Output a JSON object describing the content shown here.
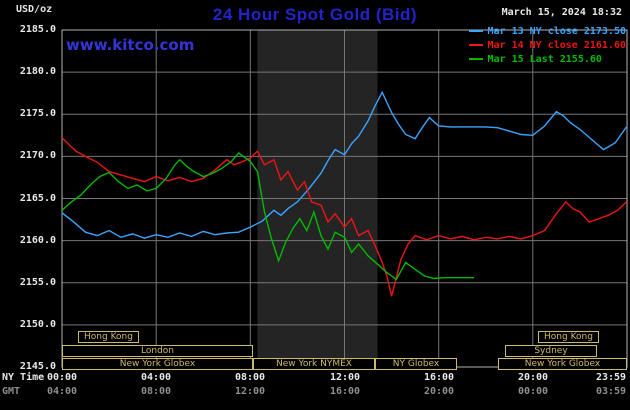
{
  "header": {
    "unit_label": "USD/oz",
    "title": "24 Hour Spot Gold (Bid)",
    "datetime": "March 15, 2024 18:32",
    "watermark": "www.kitco.com"
  },
  "legend": {
    "items": [
      {
        "label": "Mar 13 NY close 2173.50"
      },
      {
        "label": "Mar 14 NY close 2161.60"
      },
      {
        "label": "Mar 15 Last 2155.60"
      }
    ]
  },
  "axes": {
    "y_ticks": [
      "2185.0",
      "2180.0",
      "2175.0",
      "2170.0",
      "2165.0",
      "2160.0",
      "2155.0",
      "2150.0",
      "2145.0"
    ],
    "y_color": "#e8e8e8",
    "x_tick_hours": [
      0,
      4,
      8,
      12,
      16,
      20,
      23.983
    ],
    "x_axis_rows": [
      {
        "name": "NY Time",
        "color": "#e8e8e8",
        "labels": [
          "00:00",
          "04:00",
          "08:00",
          "12:00",
          "16:00",
          "20:00",
          "23:59"
        ]
      },
      {
        "name": "GMT",
        "color": "#8f8f8f",
        "labels": [
          "04:00",
          "08:00",
          "12:00",
          "16:00",
          "20:00",
          "00:00",
          "03:59"
        ]
      }
    ]
  },
  "sessions": [
    {
      "label": "Hong Kong",
      "row": 0,
      "start": 0.7,
      "end": 3.3
    },
    {
      "label": "Hong Kong",
      "row": 0,
      "start": 20.2,
      "end": 22.8
    },
    {
      "label": "London",
      "row": 1,
      "start": 0.0,
      "end": 8.1
    },
    {
      "label": "Sydney",
      "row": 1,
      "start": 18.8,
      "end": 22.7
    },
    {
      "label": "New York Globex",
      "row": 2,
      "start": 0.0,
      "end": 8.1
    },
    {
      "label": "New York NYMEX",
      "row": 2,
      "start": 8.1,
      "end": 13.3
    },
    {
      "label": "NY Globex",
      "row": 2,
      "start": 13.3,
      "end": 16.8
    },
    {
      "label": "New York Globex",
      "row": 2,
      "start": 18.5,
      "end": 24.0
    }
  ],
  "colors": {
    "background": "#000000",
    "plot_border": "#b4b4b4",
    "grid": "#767676",
    "band": "#242424",
    "session_box": "#cdb96d",
    "title": "#2323cc",
    "watermark": "#3535d6"
  },
  "chart_data": {
    "type": "line",
    "title": "24 Hour Spot Gold (Bid)",
    "ylabel": "USD/oz",
    "ylim": [
      2145,
      2185
    ],
    "xlim_hours": [
      0,
      24
    ],
    "y_gridlines": [
      2150,
      2155,
      2160,
      2165,
      2170,
      2175,
      2180
    ],
    "x_gridlines_hours": [
      4,
      8,
      12,
      16,
      20
    ],
    "ny_session_band_hours": [
      8.3,
      13.4
    ],
    "legend_position": "top-right",
    "series": [
      {
        "id": "mar13",
        "name": "Mar 13 NY close 2173.50",
        "close": 2173.5,
        "color": "#3aa4ff",
        "points": [
          [
            0,
            2163.3
          ],
          [
            0.5,
            2162.2
          ],
          [
            1,
            2161.0
          ],
          [
            1.5,
            2160.6
          ],
          [
            2,
            2161.2
          ],
          [
            2.5,
            2160.4
          ],
          [
            3,
            2160.8
          ],
          [
            3.5,
            2160.3
          ],
          [
            4,
            2160.7
          ],
          [
            4.5,
            2160.4
          ],
          [
            5,
            2160.9
          ],
          [
            5.5,
            2160.5
          ],
          [
            6,
            2161.1
          ],
          [
            6.5,
            2160.7
          ],
          [
            7,
            2160.9
          ],
          [
            7.5,
            2161.0
          ],
          [
            8,
            2161.6
          ],
          [
            8.5,
            2162.3
          ],
          [
            9,
            2163.6
          ],
          [
            9.3,
            2163.0
          ],
          [
            9.6,
            2163.8
          ],
          [
            10,
            2164.6
          ],
          [
            10.5,
            2166.2
          ],
          [
            11,
            2168.0
          ],
          [
            11.3,
            2169.5
          ],
          [
            11.6,
            2170.8
          ],
          [
            12,
            2170.2
          ],
          [
            12.3,
            2171.5
          ],
          [
            12.6,
            2172.4
          ],
          [
            13,
            2174.2
          ],
          [
            13.3,
            2176.0
          ],
          [
            13.6,
            2177.6
          ],
          [
            13.8,
            2176.4
          ],
          [
            14,
            2175.2
          ],
          [
            14.3,
            2173.8
          ],
          [
            14.6,
            2172.6
          ],
          [
            15,
            2172.1
          ],
          [
            15.3,
            2173.4
          ],
          [
            15.6,
            2174.6
          ],
          [
            16,
            2173.6
          ],
          [
            16.5,
            2173.5
          ],
          [
            17,
            2173.5
          ],
          [
            17.5,
            2173.5
          ],
          [
            18,
            2173.5
          ],
          [
            18.5,
            2173.4
          ],
          [
            19,
            2173.0
          ],
          [
            19.5,
            2172.6
          ],
          [
            20,
            2172.5
          ],
          [
            20.5,
            2173.6
          ],
          [
            21,
            2175.3
          ],
          [
            21.3,
            2174.8
          ],
          [
            21.6,
            2174.0
          ],
          [
            22,
            2173.2
          ],
          [
            22.5,
            2172.0
          ],
          [
            23,
            2170.8
          ],
          [
            23.5,
            2171.6
          ],
          [
            23.98,
            2173.5
          ]
        ]
      },
      {
        "id": "mar14",
        "name": "Mar 14 NY close 2161.60",
        "close": 2161.6,
        "color": "#ee1515",
        "points": [
          [
            0,
            2172.2
          ],
          [
            0.3,
            2171.4
          ],
          [
            0.6,
            2170.6
          ],
          [
            1,
            2170.0
          ],
          [
            1.5,
            2169.3
          ],
          [
            2,
            2168.2
          ],
          [
            2.5,
            2167.8
          ],
          [
            3,
            2167.4
          ],
          [
            3.5,
            2167.0
          ],
          [
            4,
            2167.6
          ],
          [
            4.5,
            2167.1
          ],
          [
            5,
            2167.5
          ],
          [
            5.5,
            2167.0
          ],
          [
            6,
            2167.4
          ],
          [
            6.5,
            2168.4
          ],
          [
            7,
            2169.6
          ],
          [
            7.3,
            2169.0
          ],
          [
            7.6,
            2169.3
          ],
          [
            8,
            2169.8
          ],
          [
            8.3,
            2170.6
          ],
          [
            8.6,
            2169.0
          ],
          [
            9,
            2169.6
          ],
          [
            9.3,
            2167.2
          ],
          [
            9.6,
            2168.2
          ],
          [
            10,
            2166.0
          ],
          [
            10.3,
            2167.0
          ],
          [
            10.6,
            2164.6
          ],
          [
            11,
            2164.2
          ],
          [
            11.3,
            2162.2
          ],
          [
            11.6,
            2163.2
          ],
          [
            12,
            2161.6
          ],
          [
            12.3,
            2162.6
          ],
          [
            12.6,
            2160.6
          ],
          [
            13,
            2161.2
          ],
          [
            13.3,
            2159.4
          ],
          [
            13.6,
            2157.4
          ],
          [
            13.8,
            2155.8
          ],
          [
            14,
            2153.4
          ],
          [
            14.2,
            2155.6
          ],
          [
            14.4,
            2157.8
          ],
          [
            14.7,
            2159.6
          ],
          [
            15,
            2160.6
          ],
          [
            15.5,
            2160.1
          ],
          [
            16,
            2160.6
          ],
          [
            16.5,
            2160.2
          ],
          [
            17,
            2160.5
          ],
          [
            17.5,
            2160.1
          ],
          [
            18,
            2160.4
          ],
          [
            18.5,
            2160.2
          ],
          [
            19,
            2160.5
          ],
          [
            19.5,
            2160.2
          ],
          [
            20,
            2160.6
          ],
          [
            20.5,
            2161.2
          ],
          [
            21,
            2163.2
          ],
          [
            21.4,
            2164.6
          ],
          [
            21.7,
            2163.8
          ],
          [
            22,
            2163.4
          ],
          [
            22.4,
            2162.2
          ],
          [
            22.8,
            2162.6
          ],
          [
            23.2,
            2163.0
          ],
          [
            23.6,
            2163.6
          ],
          [
            23.98,
            2164.6
          ]
        ]
      },
      {
        "id": "mar15",
        "name": "Mar 15 Last 2155.60",
        "last": 2155.6,
        "color": "#00bb00",
        "points": [
          [
            0,
            2163.6
          ],
          [
            0.4,
            2164.6
          ],
          [
            0.8,
            2165.4
          ],
          [
            1.2,
            2166.6
          ],
          [
            1.6,
            2167.6
          ],
          [
            2,
            2168.1
          ],
          [
            2.4,
            2167.0
          ],
          [
            2.8,
            2166.2
          ],
          [
            3.2,
            2166.6
          ],
          [
            3.6,
            2165.9
          ],
          [
            4,
            2166.2
          ],
          [
            4.4,
            2167.3
          ],
          [
            4.8,
            2169.0
          ],
          [
            5,
            2169.6
          ],
          [
            5.3,
            2168.8
          ],
          [
            5.6,
            2168.2
          ],
          [
            6,
            2167.6
          ],
          [
            6.4,
            2168.0
          ],
          [
            6.8,
            2168.6
          ],
          [
            7.2,
            2169.4
          ],
          [
            7.5,
            2170.4
          ],
          [
            7.8,
            2169.8
          ],
          [
            8,
            2169.4
          ],
          [
            8.3,
            2168.2
          ],
          [
            8.6,
            2163.4
          ],
          [
            8.9,
            2160.2
          ],
          [
            9.2,
            2157.6
          ],
          [
            9.5,
            2159.8
          ],
          [
            9.8,
            2161.4
          ],
          [
            10.1,
            2162.6
          ],
          [
            10.4,
            2161.2
          ],
          [
            10.7,
            2163.4
          ],
          [
            11,
            2160.6
          ],
          [
            11.3,
            2159.0
          ],
          [
            11.6,
            2161.0
          ],
          [
            12,
            2160.4
          ],
          [
            12.3,
            2158.6
          ],
          [
            12.6,
            2159.6
          ],
          [
            13,
            2158.2
          ],
          [
            13.4,
            2157.2
          ],
          [
            13.8,
            2156.2
          ],
          [
            14.2,
            2155.4
          ],
          [
            14.6,
            2157.4
          ],
          [
            15,
            2156.6
          ],
          [
            15.4,
            2155.8
          ],
          [
            15.8,
            2155.5
          ],
          [
            16.2,
            2155.6
          ],
          [
            16.6,
            2155.6
          ],
          [
            17,
            2155.6
          ],
          [
            17.5,
            2155.6
          ]
        ]
      }
    ]
  }
}
